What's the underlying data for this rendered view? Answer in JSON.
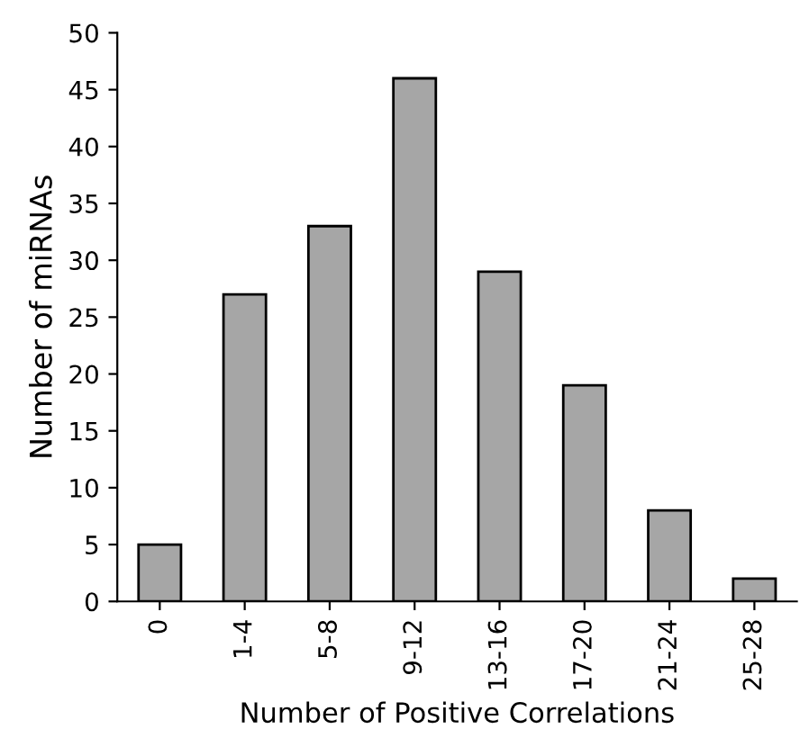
{
  "chart_data": {
    "type": "bar",
    "xlabel": "Number of Positive Correlations",
    "ylabel": "Number of miRNAs",
    "categories": [
      "0",
      "1-4",
      "5-8",
      "9-12",
      "13-16",
      "17-20",
      "21-24",
      "25-28"
    ],
    "values": [
      5,
      27,
      33,
      46,
      29,
      19,
      8,
      2
    ],
    "color": "#a6a6a6",
    "ylim": [
      0,
      50
    ],
    "yticks": [
      0,
      5,
      10,
      15,
      20,
      25,
      30,
      35,
      40,
      45,
      50
    ],
    "grid": false
  }
}
